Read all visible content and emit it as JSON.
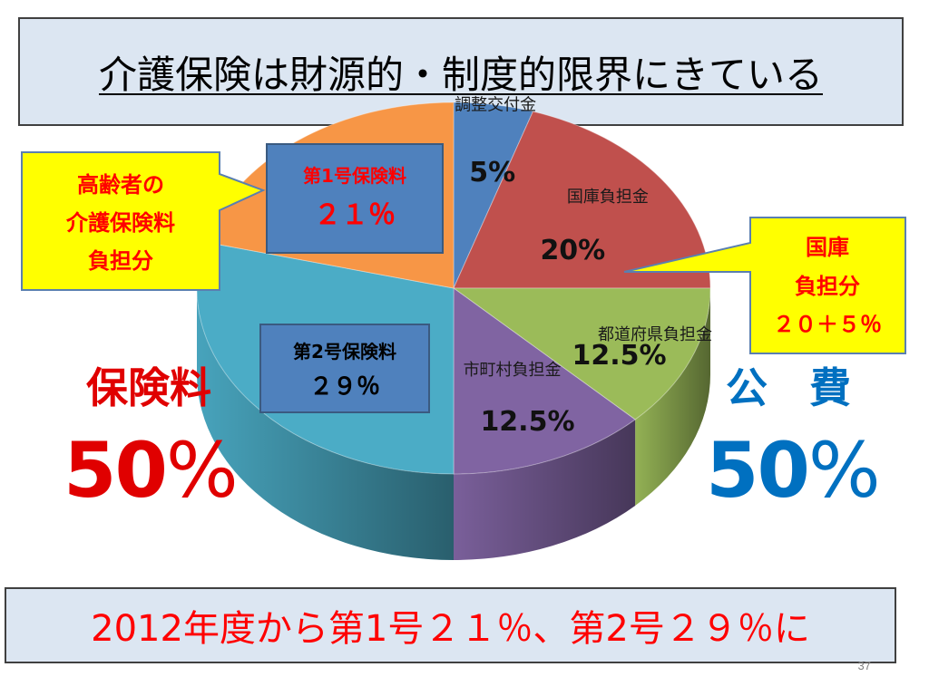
{
  "title": "介護保険は財源的・制度的限界にきている",
  "chart_data": {
    "type": "pie",
    "segments": [
      {
        "name": "調整交付金",
        "label": "5%",
        "value": 5,
        "color": "#4f81bd"
      },
      {
        "name": "国庫負担金",
        "label": "20%",
        "value": 20,
        "color": "#c0504d"
      },
      {
        "name": "都道府県負担金",
        "label": "12.5%",
        "value": 12.5,
        "color": "#9bbb59"
      },
      {
        "name": "市町村負担金",
        "label": "12.5%",
        "value": 12.5,
        "color": "#8064a2"
      },
      {
        "name": "",
        "label": "",
        "value": 29,
        "color": "#4bacc6"
      },
      {
        "name": "",
        "label": "",
        "value": 21,
        "color": "#f79646"
      }
    ]
  },
  "callouts": {
    "elderly": {
      "lines": [
        "高齢者の",
        "介護保険料",
        "負担分"
      ],
      "bg": "#ffff00",
      "color": "#ff0000"
    },
    "national": {
      "lines": [
        "国庫",
        "負担分",
        "２０＋５％"
      ],
      "bg": "#ffff00",
      "color": "#ff0000"
    },
    "first": {
      "lines": [
        "第1号保険料",
        "２１％"
      ],
      "bg": "#4f81bd",
      "color": "#ff0000"
    },
    "second": {
      "lines": [
        "第2号保険料",
        "２９％"
      ],
      "bg": "#4f81bd",
      "color": "#000000"
    }
  },
  "side_labels": {
    "left_label": "保険料",
    "left_value": "50",
    "left_pct": "%",
    "left_color": "#e00000",
    "right_label": "公　費",
    "right_value": "50",
    "right_pct": "%",
    "right_color": "#0070c0"
  },
  "bottom_text": "2012年度から第1号２１％、第2号２９％に",
  "page_number": "37"
}
